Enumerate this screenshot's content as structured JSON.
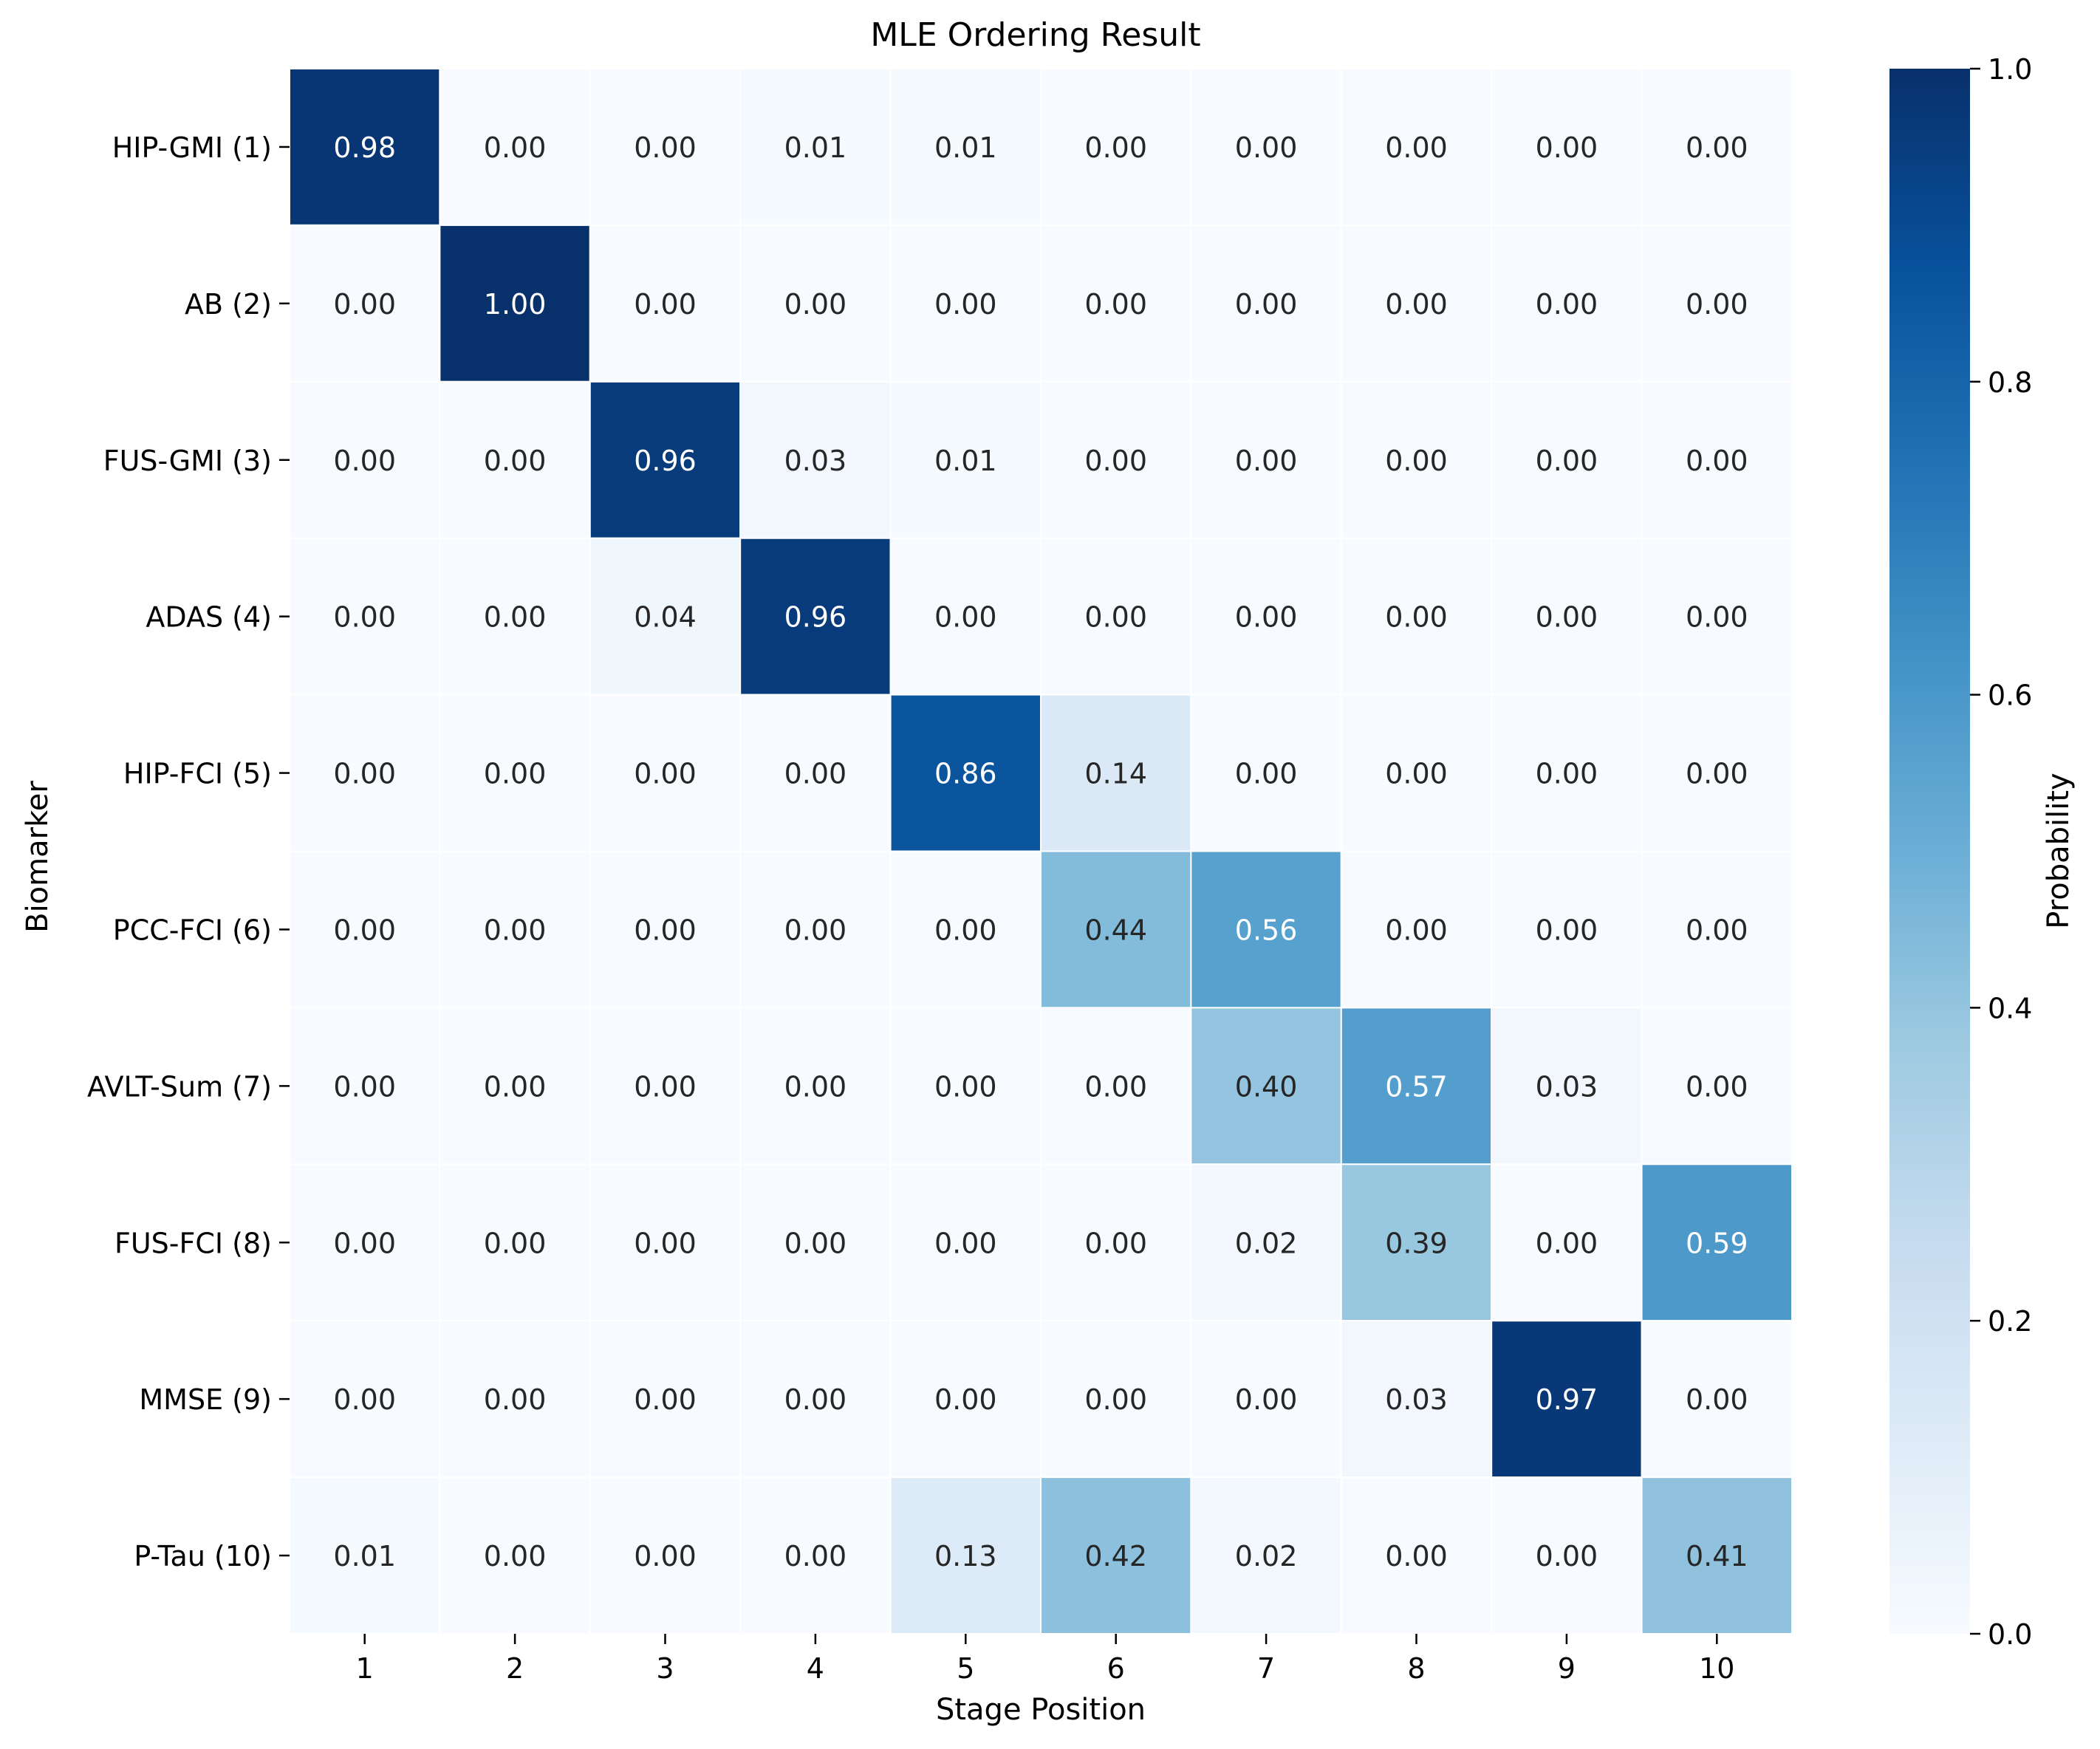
{
  "chart_data": {
    "type": "heatmap",
    "title": "MLE Ordering Result",
    "xlabel": "Stage Position",
    "ylabel": "Biomarker",
    "colorbar_label": "Probability",
    "colormap": "Blues",
    "vmin": 0.0,
    "vmax": 1.0,
    "colorbar_ticks": [
      "0.0",
      "0.2",
      "0.4",
      "0.6",
      "0.8",
      "1.0"
    ],
    "x_categories": [
      "1",
      "2",
      "3",
      "4",
      "5",
      "6",
      "7",
      "8",
      "9",
      "10"
    ],
    "y_categories": [
      "HIP-GMI (1)",
      "AB (2)",
      "FUS-GMI (3)",
      "ADAS (4)",
      "HIP-FCI (5)",
      "PCC-FCI (6)",
      "AVLT-Sum (7)",
      "FUS-FCI (8)",
      "MMSE (9)",
      "P-Tau (10)"
    ],
    "values": [
      [
        0.98,
        0.0,
        0.0,
        0.01,
        0.01,
        0.0,
        0.0,
        0.0,
        0.0,
        0.0
      ],
      [
        0.0,
        1.0,
        0.0,
        0.0,
        0.0,
        0.0,
        0.0,
        0.0,
        0.0,
        0.0
      ],
      [
        0.0,
        0.0,
        0.96,
        0.03,
        0.01,
        0.0,
        0.0,
        0.0,
        0.0,
        0.0
      ],
      [
        0.0,
        0.0,
        0.04,
        0.96,
        0.0,
        0.0,
        0.0,
        0.0,
        0.0,
        0.0
      ],
      [
        0.0,
        0.0,
        0.0,
        0.0,
        0.86,
        0.14,
        0.0,
        0.0,
        0.0,
        0.0
      ],
      [
        0.0,
        0.0,
        0.0,
        0.0,
        0.0,
        0.44,
        0.56,
        0.0,
        0.0,
        0.0
      ],
      [
        0.0,
        0.0,
        0.0,
        0.0,
        0.0,
        0.0,
        0.4,
        0.57,
        0.03,
        0.0
      ],
      [
        0.0,
        0.0,
        0.0,
        0.0,
        0.0,
        0.0,
        0.02,
        0.39,
        0.0,
        0.59
      ],
      [
        0.0,
        0.0,
        0.0,
        0.0,
        0.0,
        0.0,
        0.0,
        0.03,
        0.97,
        0.0
      ],
      [
        0.01,
        0.0,
        0.0,
        0.0,
        0.13,
        0.42,
        0.02,
        0.0,
        0.0,
        0.41
      ]
    ],
    "value_format": "2 decimals",
    "grid": false,
    "cell_gridlines_color": "#ffffff"
  }
}
